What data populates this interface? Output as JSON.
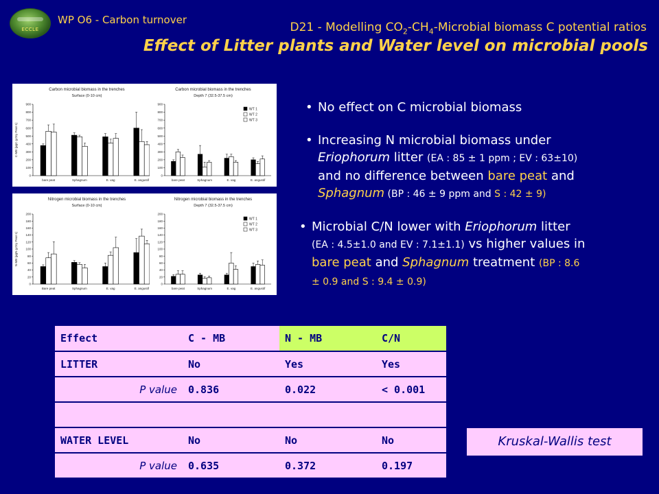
{
  "header": {
    "logo_text": "ECCLE",
    "wp": "WP O6 - Carbon turnover",
    "d21_a": "D21 - Modelling CO",
    "d21_sub1": "2",
    "d21_b": "-CH",
    "d21_sub2": "4",
    "d21_c": "-Microbial biomass C potential ratios",
    "title": "Effect of Litter plants and Water level  on microbial pools"
  },
  "bullets": {
    "b1": "No effect on C microbial biomass",
    "b2_a": "Increasing N microbial biomass under",
    "b2_b_italic": "Eriophorum",
    "b2_b": " litter ",
    "b2_b_small": "(EA : 85 ± 1 ppm ; EV : 63±10)",
    "b2_c": "and no difference between ",
    "b2_c_yel": "bare peat",
    "b2_c2": " and",
    "b2_d_yel_italic": "Sphagnum",
    "b2_d_small1": " (BP : 46 ± 9 ppm",
    "b2_d_small2": " and ",
    "b2_d_small3": "S : 42 ± 9)",
    "b3_a": "Microbial C/N lower with ",
    "b3_a_italic": "Eriophorum",
    "b3_a2": " litter",
    "b3_b_small": "(EA : 4.5±1.0  and EV : 7.1±1.1)",
    "b3_b": " vs higher values in",
    "b3_c_yel": "bare peat",
    "b3_c": " and ",
    "b3_c_yel2": "Sphagnum",
    "b3_c2": " treatment ",
    "b3_c_small": "(BP : 8.6",
    "b3_d_small1": "± 0.9 and ",
    "b3_d_small2": "S : 9.4 ± 0.9)"
  },
  "table": {
    "header": [
      "Effect",
      "C - MB",
      "N - MB",
      "C/N"
    ],
    "litter": [
      "LITTER",
      "No",
      "Yes",
      "Yes"
    ],
    "litter_p": [
      "P value",
      "0.836",
      "0.022",
      "< 0.001"
    ],
    "water": [
      "WATER LEVEL",
      "No",
      "No",
      "No"
    ],
    "water_p": [
      "P value",
      "0.635",
      "0.372",
      "0.197"
    ]
  },
  "test_label": "Kruskal-Wallis test",
  "colors": {
    "background": "#000080",
    "accent": "#ffd24a",
    "pink": "#ffccff",
    "green": "#ccff66"
  },
  "chart_data": [
    {
      "type": "bar",
      "title": "Carbon microbial biomass in the trenches",
      "subtitle": "Surface (0-10 cm)",
      "ylabel": "C-MB (µgC g.Dry Peat-1)",
      "ylim": [
        0,
        900
      ],
      "yticks": [
        0,
        100,
        200,
        300,
        400,
        500,
        600,
        700,
        800,
        900
      ],
      "categories": [
        "bare peat",
        "Sphagnum",
        "E. vag",
        "E. angustif"
      ],
      "legend": [],
      "series": [
        {
          "values": [
            380,
            510,
            490,
            600
          ],
          "errors": [
            20,
            30,
            40,
            200
          ]
        },
        {
          "values": [
            560,
            490,
            410,
            430
          ],
          "errors": [
            80,
            20,
            50,
            150
          ]
        },
        {
          "values": [
            550,
            370,
            470,
            390
          ],
          "errors": [
            100,
            40,
            60,
            40
          ]
        }
      ]
    },
    {
      "type": "bar",
      "title": "Carbon microbial biomass in the trenches",
      "subtitle": "Depth 7 (32.5-37.5 cm)",
      "ylabel": "",
      "ylim": [
        0,
        900
      ],
      "yticks": [
        0,
        100,
        200,
        300,
        400,
        500,
        600,
        700,
        800,
        900
      ],
      "categories": [
        "bare peat",
        "Sphagnum",
        "E. vag",
        "E. angustif"
      ],
      "legend": [
        "WT 1",
        "WT 2",
        "WT 3"
      ],
      "series": [
        {
          "values": [
            180,
            270,
            220,
            200
          ],
          "errors": [
            20,
            110,
            50,
            25
          ]
        },
        {
          "values": [
            300,
            110,
            240,
            150
          ],
          "errors": [
            30,
            60,
            30,
            30
          ]
        },
        {
          "values": [
            230,
            170,
            170,
            210
          ],
          "errors": [
            30,
            20,
            20,
            40
          ]
        }
      ]
    },
    {
      "type": "bar",
      "title": "Nitrogen microbial biomass in the trenches",
      "subtitle": "Surface (0-10 cm)",
      "ylabel": "N-MB (µgN g.Dry Peat-1)",
      "ylim": [
        0,
        200
      ],
      "yticks": [
        0,
        20,
        40,
        60,
        80,
        100,
        120,
        140,
        160,
        180,
        200
      ],
      "categories": [
        "Bare peat",
        "Sphagnum",
        "E. vag",
        "E. angustif"
      ],
      "legend": [],
      "series": [
        {
          "values": [
            50,
            62,
            50,
            90
          ],
          "errors": [
            5,
            5,
            10,
            40
          ]
        },
        {
          "values": [
            75,
            56,
            82,
            137
          ],
          "errors": [
            15,
            5,
            10,
            20
          ]
        },
        {
          "values": [
            86,
            46,
            104,
            115
          ],
          "errors": [
            35,
            10,
            30,
            10
          ]
        }
      ]
    },
    {
      "type": "bar",
      "title": "Nitrogen microbial biomass in the trenches",
      "subtitle": "Depth 7 (32.5-37.5 cm)",
      "ylabel": "",
      "ylim": [
        0,
        200
      ],
      "yticks": [
        0,
        20,
        40,
        60,
        80,
        100,
        120,
        140,
        160,
        180,
        200
      ],
      "categories": [
        "bare peat",
        "Sphagnum",
        "E. vag",
        "E. angustif"
      ],
      "legend": [
        "WT 1",
        "WT 2",
        "WT 3"
      ],
      "series": [
        {
          "values": [
            22,
            26,
            26,
            50
          ],
          "errors": [
            5,
            5,
            5,
            10
          ]
        },
        {
          "values": [
            28,
            16,
            60,
            56
          ],
          "errors": [
            10,
            5,
            30,
            10
          ]
        },
        {
          "values": [
            28,
            18,
            42,
            54
          ],
          "errors": [
            10,
            5,
            10,
            15
          ]
        }
      ]
    }
  ]
}
